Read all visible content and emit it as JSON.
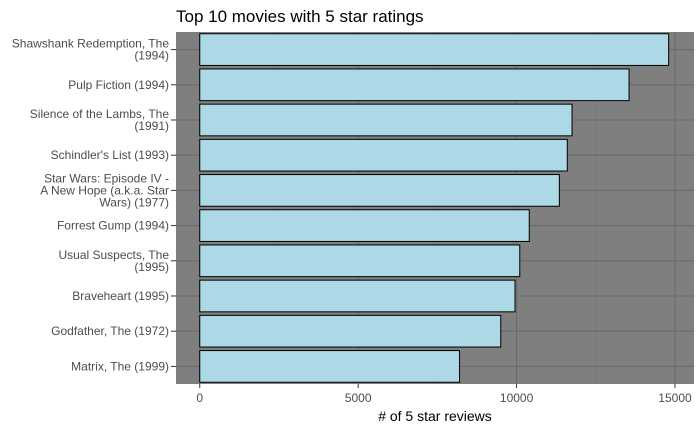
{
  "chart_data": {
    "type": "bar",
    "orientation": "horizontal",
    "title": "Top 10 movies with 5 star ratings",
    "xlabel": "# of 5 star reviews",
    "ylabel": "",
    "categories": [
      [
        "Shawshank Redemption, The",
        "(1994)"
      ],
      [
        "Pulp Fiction (1994)"
      ],
      [
        "Silence of the Lambs, The",
        "(1991)"
      ],
      [
        "Schindler's List (1993)"
      ],
      [
        "Star Wars: Episode IV -",
        "A New Hope (a.k.a. Star",
        "Wars) (1977)"
      ],
      [
        "Forrest Gump (1994)"
      ],
      [
        "Usual Suspects, The",
        "(1995)"
      ],
      [
        "Braveheart (1995)"
      ],
      [
        "Godfather, The (1972)"
      ],
      [
        "Matrix, The (1999)"
      ]
    ],
    "values": [
      14800,
      13550,
      11750,
      11600,
      11350,
      10400,
      10100,
      9950,
      9500,
      8200
    ],
    "xlim": [
      -750,
      15600
    ],
    "xticks": [
      0,
      5000,
      10000,
      15000
    ],
    "grid": true,
    "colors": {
      "panel": "#7f7f7f",
      "grid_major": "#6b6b6b",
      "grid_minor": "#757575",
      "bar_fill": "#add8e6",
      "bar_stroke": "#000000"
    }
  }
}
